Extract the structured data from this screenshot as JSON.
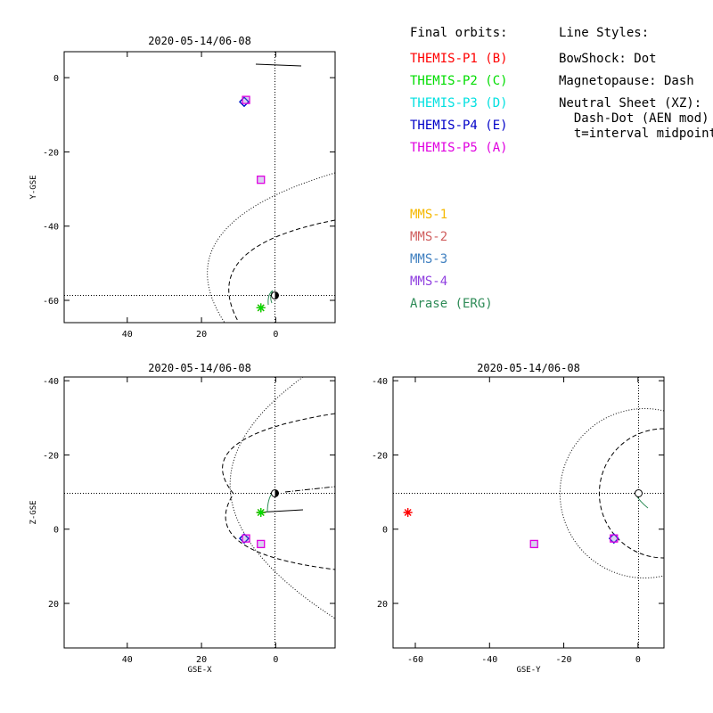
{
  "legend": {
    "final_orbits_title": "Final orbits:",
    "line_styles_title": "Line Styles:",
    "themis": [
      {
        "label": "THEMIS-P1 (B)",
        "color": "#ff0000"
      },
      {
        "label": "THEMIS-P2 (C)",
        "color": "#00dd00"
      },
      {
        "label": "THEMIS-P3 (D)",
        "color": "#00e0e0"
      },
      {
        "label": "THEMIS-P4 (E)",
        "color": "#0000c8"
      },
      {
        "label": "THEMIS-P5 (A)",
        "color": "#e000e0"
      }
    ],
    "others": [
      {
        "label": "MMS-1",
        "color": "#f5b800"
      },
      {
        "label": "MMS-2",
        "color": "#d06060"
      },
      {
        "label": "MMS-3",
        "color": "#4080c0"
      },
      {
        "label": "MMS-4",
        "color": "#9040e0"
      },
      {
        "label": "Arase (ERG)",
        "color": "#2e8b57"
      }
    ],
    "line_styles": [
      "BowShock: Dot",
      "Magnetopause: Dash",
      "Neutral Sheet (XZ):",
      "  Dash-Dot (AEN mod)",
      "  t=interval midpoint"
    ]
  },
  "chart_data": [
    {
      "type": "scatter",
      "title": "2020-05-14/06-08",
      "xlabel": "",
      "ylabel": "Y-GSE",
      "xlim": [
        57,
        -16
      ],
      "ylim": [
        7,
        -66
      ],
      "xticks": [
        40,
        20,
        0
      ],
      "yticks": [
        -60,
        -40,
        -20,
        0
      ],
      "series": [
        {
          "color": "#ff0000",
          "marker": "star",
          "x": [
            4
          ],
          "y": [
            -62
          ]
        },
        {
          "color": "#00dd00",
          "marker": "star",
          "x": [
            4
          ],
          "y": [
            -62
          ]
        },
        {
          "color": "#00e0e0",
          "marker": "diamond",
          "x": [
            8.5
          ],
          "y": [
            -6.5
          ]
        },
        {
          "color": "#0000c8",
          "marker": "diamond",
          "x": [
            8.5
          ],
          "y": [
            -6.5
          ]
        },
        {
          "color": "#e000e0",
          "marker": "square",
          "x": [
            4,
            8
          ],
          "y": [
            -27.5,
            -6
          ]
        }
      ]
    },
    {
      "type": "scatter",
      "title": "2020-05-14/06-08",
      "xlabel": "GSE-X",
      "ylabel": "Z-GSE",
      "xlim": [
        57,
        -16
      ],
      "ylim": [
        -41,
        32
      ],
      "xticks": [
        40,
        20,
        0
      ],
      "yticks": [
        -40,
        -20,
        0,
        20
      ],
      "series": [
        {
          "color": "#ff0000",
          "marker": "star",
          "x": [
            4
          ],
          "y": [
            -4.5
          ]
        },
        {
          "color": "#00dd00",
          "marker": "star",
          "x": [
            4
          ],
          "y": [
            -4.5
          ]
        },
        {
          "color": "#00e0e0",
          "marker": "diamond",
          "x": [
            8.5
          ],
          "y": [
            2.5
          ]
        },
        {
          "color": "#0000c8",
          "marker": "diamond",
          "x": [
            8.5
          ],
          "y": [
            2.5
          ]
        },
        {
          "color": "#e000e0",
          "marker": "square",
          "x": [
            4,
            8
          ],
          "y": [
            4,
            2.5
          ]
        }
      ]
    },
    {
      "type": "scatter",
      "title": "2020-05-14/06-08",
      "xlabel": "GSE-Y",
      "ylabel": "",
      "xlim": [
        -66,
        7
      ],
      "ylim": [
        -41,
        32
      ],
      "xticks": [
        -60,
        -40,
        -20,
        0
      ],
      "yticks": [
        -40,
        -20,
        0,
        20
      ],
      "series": [
        {
          "color": "#ff0000",
          "marker": "star",
          "x": [
            -62
          ],
          "y": [
            -4.5
          ]
        },
        {
          "color": "#00e0e0",
          "marker": "diamond",
          "x": [
            -6.5
          ],
          "y": [
            2.5
          ]
        },
        {
          "color": "#0000c8",
          "marker": "diamond",
          "x": [
            -6.5
          ],
          "y": [
            2.5
          ]
        },
        {
          "color": "#e000e0",
          "marker": "square",
          "x": [
            -28,
            -6.5
          ],
          "y": [
            4,
            2.5
          ]
        }
      ]
    }
  ]
}
